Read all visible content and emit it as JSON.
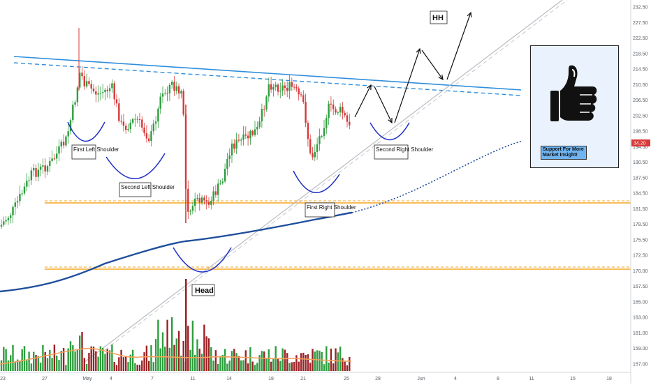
{
  "chart_data": {
    "type": "candlestick",
    "y_ticks": [
      "232.50",
      "227.50",
      "222.50",
      "218.50",
      "214.50",
      "210.50",
      "206.50",
      "202.50",
      "198.50",
      "194.50",
      "190.50",
      "187.50",
      "184.50",
      "181.50",
      "178.50",
      "175.50",
      "172.50",
      "170.00",
      "167.50",
      "165.00",
      "163.00",
      "161.00",
      "159.00",
      "157.00"
    ],
    "x_ticks": [
      "23",
      "27",
      "May",
      "4",
      "7",
      "11",
      "14",
      "18",
      "21",
      "25",
      "28",
      "Jun",
      "4",
      "8",
      "11",
      "15",
      "18"
    ],
    "current_price_label": "34.20",
    "annotations": {
      "first_left_shoulder": "First Left Shoulder",
      "second_left_shoulder": "Second Left Shoulder",
      "head": "Head",
      "first_right_shoulder": "First Right Shoulder",
      "second_right_shoulder": "Second Right Shoulder",
      "hh": "HH"
    },
    "lines": {
      "neckline_color": "#2f8fdd",
      "support_color": "#f5a623",
      "ma_color": "#1f4e9c",
      "volume_ma_color": "#f5a05a"
    },
    "colors": {
      "up": "#2e9e3e",
      "down": "#d83838",
      "volume_up": "#2e9e3e",
      "volume_down": "#9b2226"
    }
  },
  "support_box": {
    "label": "Support For More Market Insight!",
    "icon": "thumbs-up-icon"
  }
}
